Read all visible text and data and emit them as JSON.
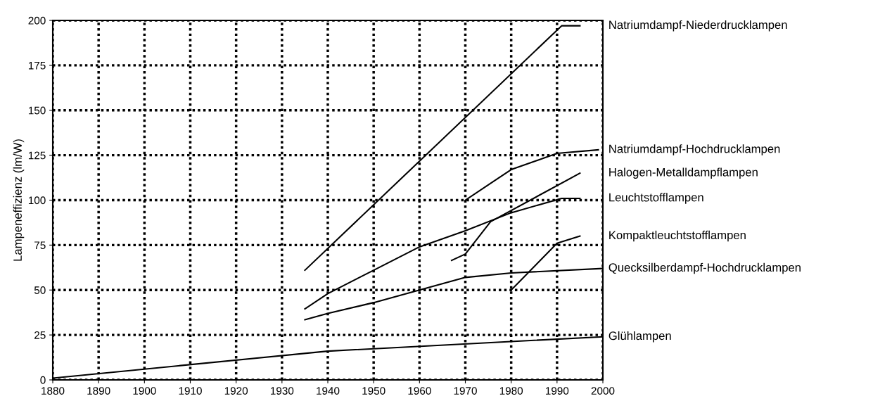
{
  "chart_data": {
    "type": "line",
    "ylabel": "Lampeneffizienz (lm/W)",
    "xlim": [
      1880,
      2000
    ],
    "xticks": [
      1880,
      1890,
      1900,
      1910,
      1920,
      1930,
      1940,
      1950,
      1960,
      1970,
      1980,
      1990,
      2000
    ],
    "ylim": [
      0,
      200
    ],
    "yticks": [
      0,
      25,
      50,
      75,
      100,
      125,
      150,
      175,
      200
    ],
    "grid": true,
    "line_style": "solid",
    "marker": "none",
    "legend": false,
    "series": [
      {
        "name": "Natriumdampf-Niederdrucklampen",
        "color": "#000000",
        "x": [
          1935,
          1991,
          1995
        ],
        "values": [
          61,
          197,
          197
        ]
      },
      {
        "name": "Natriumdampf-Hochdrucklampen",
        "color": "#000000",
        "x": [
          1970,
          1980,
          1990,
          1999
        ],
        "values": [
          100,
          117,
          126,
          128
        ]
      },
      {
        "name": "Halogen-Metalldampflampen",
        "color": "#000000",
        "x": [
          1967,
          1970,
          1975.5,
          1995
        ],
        "values": [
          66.5,
          70,
          88,
          115
        ]
      },
      {
        "name": "Leuchtstofflampen",
        "color": "#000000",
        "x": [
          1935,
          1940,
          1950,
          1960,
          1970,
          1980,
          1991,
          1995
        ],
        "values": [
          39.5,
          48,
          61,
          74,
          83,
          93,
          101,
          101
        ]
      },
      {
        "name": "Kompaktleuchtstofflampen",
        "color": "#000000",
        "x": [
          1980,
          1990,
          1995
        ],
        "values": [
          50,
          76,
          80
        ]
      },
      {
        "name": "Quecksilberdampf-Hochdrucklampen",
        "color": "#000000",
        "x": [
          1935,
          1940,
          1950,
          1960,
          1970,
          1980,
          2000
        ],
        "values": [
          33.5,
          37,
          43,
          50,
          57,
          59.5,
          62
        ]
      },
      {
        "name": "Glühlampen",
        "color": "#000000",
        "x": [
          1880,
          1940,
          2000
        ],
        "values": [
          1,
          16,
          24
        ]
      }
    ]
  }
}
